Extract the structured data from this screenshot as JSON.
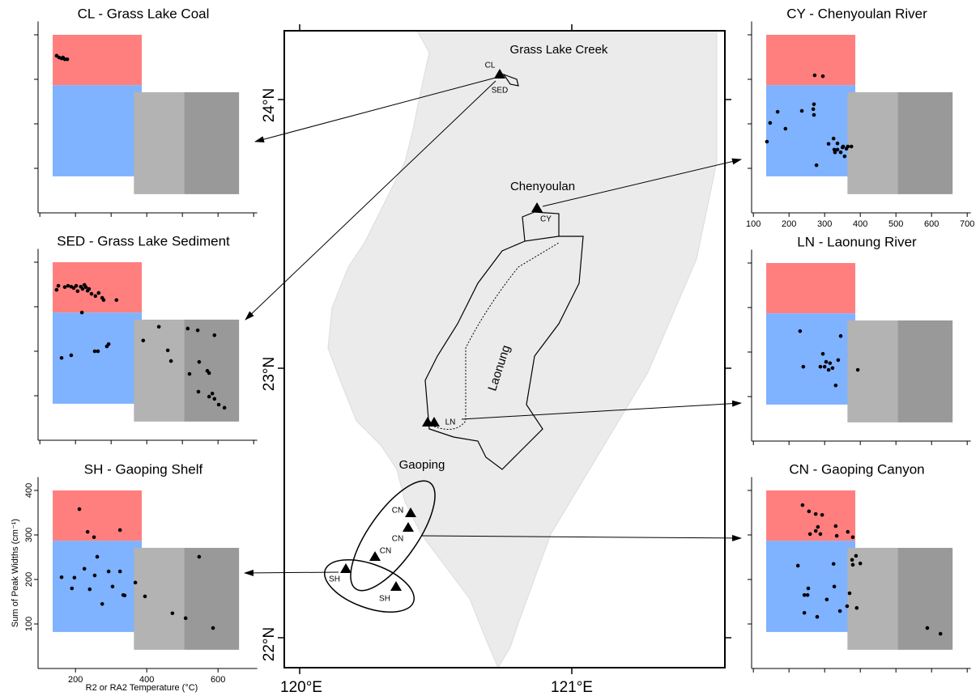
{
  "chart_data": [
    {
      "type": "scatter",
      "title": "CL - Grass Lake Coal",
      "color": "#000000",
      "x": [
        147,
        154,
        161,
        170,
        177,
        165
      ],
      "y": [
        353,
        349,
        347,
        345,
        345,
        349
      ],
      "xlim": [
        95,
        710
      ],
      "ylim": [
        0,
        430
      ],
      "xticks": [
        100,
        200,
        300,
        400,
        500,
        600,
        700
      ],
      "yticks": [
        100,
        200,
        300,
        400
      ],
      "tick_labels": false
    },
    {
      "type": "scatter",
      "title": "SED - Grass Lake Sediment",
      "color": "#000000",
      "x": [
        147,
        152,
        170,
        179,
        188,
        195,
        202,
        206,
        215,
        220,
        225,
        229,
        234,
        238,
        245,
        256,
        265,
        275,
        279,
        315,
        218,
        161,
        188,
        254,
        263,
        288,
        293,
        390,
        434,
        459,
        468,
        515,
        543,
        590,
        547,
        520,
        570,
        575,
        545,
        575,
        584,
        590,
        602,
        618
      ],
      "y": [
        338,
        347,
        344,
        347,
        345,
        342,
        347,
        335,
        345,
        340,
        349,
        344,
        336,
        340,
        329,
        324,
        331,
        320,
        315,
        315,
        287,
        185,
        191,
        200,
        200,
        211,
        216,
        224,
        255,
        202,
        178,
        251,
        247,
        236,
        176,
        149,
        156,
        151,
        109,
        98,
        105,
        93,
        80,
        73
      ],
      "xlim": [
        95,
        710
      ],
      "ylim": [
        0,
        430
      ],
      "xticks": [
        100,
        200,
        300,
        400,
        500,
        600,
        700
      ],
      "yticks": [
        100,
        200,
        300,
        400
      ],
      "tick_labels": false
    },
    {
      "type": "scatter",
      "title": "SH - Gaoping Shelf",
      "color": "#000000",
      "x_label": "R2 or RA2 Temperature (°C)",
      "y_label": "Sum of Peak Widths (cm⁻¹)",
      "x": [
        211,
        234,
        252,
        261,
        161,
        197,
        225,
        254,
        293,
        325,
        334,
        190,
        240,
        275,
        304,
        338,
        368,
        395,
        547,
        472,
        509,
        586,
        325
      ],
      "y": [
        358,
        307,
        295,
        251,
        205,
        204,
        224,
        209,
        218,
        218,
        165,
        180,
        178,
        145,
        184,
        164,
        193,
        162,
        251,
        124,
        113,
        91,
        311
      ],
      "xlim": [
        95,
        710
      ],
      "ylim": [
        0,
        430
      ],
      "xticks": [
        200,
        400,
        600
      ],
      "yticks": [
        100,
        200,
        300,
        400
      ],
      "tick_labels": true
    },
    {
      "type": "scatter",
      "title": "CY - Chenyoulan River",
      "color": "#000000",
      "x": [
        272,
        295,
        236,
        270,
        268,
        270,
        168,
        147,
        190,
        138,
        277,
        311,
        325,
        336,
        336,
        350,
        345,
        352,
        361,
        365,
        329,
        375,
        356,
        327
      ],
      "y": [
        309,
        307,
        229,
        244,
        233,
        220,
        227,
        202,
        189,
        160,
        107,
        155,
        167,
        156,
        142,
        147,
        136,
        149,
        144,
        149,
        136,
        149,
        127,
        142
      ],
      "xlim": [
        95,
        710
      ],
      "ylim": [
        0,
        430
      ],
      "xticks": [
        100,
        200,
        300,
        400,
        500,
        600,
        700
      ],
      "yticks": [
        100,
        200,
        300,
        400
      ],
      "tick_labels": true
    },
    {
      "type": "scatter",
      "title": "LN - Laonung River",
      "color": "#000000",
      "x": [
        231,
        240,
        295,
        304,
        288,
        300,
        311,
        322,
        315,
        338,
        345,
        331,
        393
      ],
      "y": [
        247,
        167,
        196,
        178,
        167,
        167,
        160,
        164,
        175,
        182,
        236,
        125,
        160
      ],
      "xlim": [
        95,
        710
      ],
      "ylim": [
        0,
        430
      ],
      "xticks": [
        100,
        200,
        300,
        400,
        500,
        600,
        700
      ],
      "yticks": [
        100,
        200,
        300,
        400
      ],
      "tick_labels": false
    },
    {
      "type": "scatter",
      "title": "CN - Gaoping Canyon",
      "color": "#000000",
      "x": [
        238,
        256,
        275,
        293,
        259,
        281,
        275,
        288,
        331,
        334,
        365,
        379,
        225,
        254,
        243,
        252,
        243,
        279,
        306,
        325,
        327,
        343,
        370,
        377,
        388,
        379,
        400,
        363,
        390,
        588,
        625
      ],
      "y": [
        367,
        353,
        347,
        345,
        302,
        318,
        309,
        302,
        320,
        298,
        307,
        295,
        231,
        180,
        165,
        165,
        125,
        116,
        155,
        235,
        184,
        129,
        169,
        244,
        253,
        233,
        236,
        140,
        136,
        91,
        78
      ],
      "xlim": [
        95,
        710
      ],
      "ylim": [
        0,
        430
      ],
      "xticks": [
        100,
        200,
        300,
        400,
        500,
        600,
        700
      ],
      "yticks": [
        100,
        200,
        300,
        400
      ],
      "tick_labels": false
    }
  ],
  "regions": [
    {
      "color": "#7fb2ff",
      "xlim": [
        136,
        386
      ],
      "ylim": [
        82,
        287
      ]
    },
    {
      "color": "#ff7f7f",
      "xlim": [
        136,
        386
      ],
      "ylim": [
        287,
        400
      ]
    },
    {
      "color": "#b3b3b3",
      "xlim": [
        364,
        505
      ],
      "ylim": [
        42,
        271
      ]
    },
    {
      "color": "#999999",
      "xlim": [
        505,
        659
      ],
      "ylim": [
        42,
        271
      ]
    }
  ],
  "map": {
    "labels": [
      "Grass Lake Creek",
      "CL",
      "SED",
      "Chenyoulan",
      "CY",
      "Laonung",
      "LN",
      "Gaoping",
      "CN",
      "CN",
      "CN",
      "SH",
      "SH"
    ],
    "lat_labels": [
      "24°N",
      "23°N",
      "22°N"
    ],
    "lon_labels": [
      "120°E",
      "121°E"
    ]
  }
}
